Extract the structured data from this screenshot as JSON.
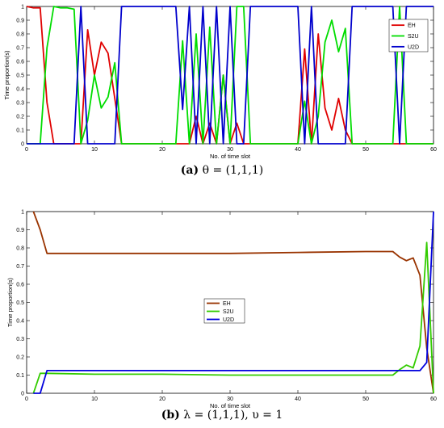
{
  "captions": [
    {
      "letter": "(a)",
      "text": "θ = (1,1,1)"
    },
    {
      "letter": "(b)",
      "text": "λ = (1,1,1), υ = 1"
    }
  ],
  "chart_data": [
    {
      "type": "line",
      "xlabel": "No. of time slot",
      "ylabel": "Time proportion(s)",
      "xlim": [
        0,
        60
      ],
      "ylim": [
        0,
        1
      ],
      "xticks": [
        0,
        10,
        20,
        30,
        40,
        50,
        60
      ],
      "yticks": [
        0,
        0.1,
        0.2,
        0.3,
        0.4,
        0.5,
        0.6,
        0.7,
        0.8,
        0.9,
        1
      ],
      "legend_position": "top-right",
      "grid": false,
      "series": [
        {
          "name": "EH",
          "color": "#e00000",
          "x": [
            0,
            1,
            2,
            3,
            4,
            5,
            6,
            7,
            8,
            9,
            10,
            11,
            12,
            13,
            14,
            15,
            20,
            22,
            23,
            24,
            25,
            26,
            27,
            28,
            29,
            30,
            31,
            32,
            33,
            34,
            35,
            40,
            41,
            42,
            43,
            44,
            45,
            46,
            47,
            48,
            49,
            50,
            54,
            55,
            56,
            57,
            58,
            59,
            60
          ],
          "y": [
            1,
            0.99,
            0.99,
            0.3,
            0,
            0,
            0,
            0,
            0,
            0.83,
            0.5,
            0.74,
            0.66,
            0.33,
            0,
            0,
            0,
            0,
            0,
            0,
            0.2,
            0,
            0.15,
            0,
            0.5,
            0,
            0.15,
            0,
            0,
            0,
            0,
            0,
            0.69,
            0,
            0.8,
            0.26,
            0.1,
            0.33,
            0.1,
            0,
            0,
            0,
            0,
            0,
            0,
            0,
            0,
            0,
            0
          ]
        },
        {
          "name": "S2U",
          "color": "#00dd00",
          "x": [
            0,
            1,
            2,
            3,
            4,
            5,
            6,
            7,
            8,
            9,
            10,
            11,
            12,
            13,
            14,
            15,
            20,
            22,
            23,
            24,
            25,
            26,
            27,
            28,
            29,
            30,
            31,
            32,
            33,
            34,
            35,
            40,
            41,
            42,
            43,
            44,
            45,
            46,
            47,
            48,
            49,
            50,
            54,
            55,
            56,
            57,
            58,
            59,
            60
          ],
          "y": [
            0,
            0,
            0,
            0.7,
            1,
            0.99,
            0.99,
            0.98,
            0,
            0.17,
            0.5,
            0.26,
            0.34,
            0.59,
            0,
            0,
            0,
            0,
            0.75,
            0,
            0.8,
            0,
            0.85,
            0,
            0.5,
            0,
            1,
            1,
            0,
            0,
            0,
            0,
            0.31,
            0,
            0.2,
            0.74,
            0.9,
            0.67,
            0.84,
            0,
            0,
            0,
            0,
            1,
            0,
            0,
            0,
            0,
            0
          ]
        },
        {
          "name": "U2D",
          "color": "#0000cc",
          "x": [
            0,
            1,
            2,
            3,
            4,
            5,
            6,
            7,
            8,
            9,
            10,
            11,
            12,
            13,
            14,
            15,
            20,
            22,
            23,
            24,
            25,
            26,
            27,
            28,
            29,
            30,
            31,
            32,
            33,
            34,
            35,
            40,
            41,
            42,
            43,
            44,
            45,
            46,
            47,
            48,
            49,
            50,
            54,
            55,
            56,
            57,
            58,
            59,
            60
          ],
          "y": [
            0,
            0,
            0,
            0,
            0,
            0,
            0,
            0,
            1,
            0,
            0,
            0,
            0,
            0,
            1,
            1,
            1,
            1,
            0.25,
            1,
            0,
            1,
            0,
            1,
            0,
            1,
            0,
            0,
            1,
            1,
            1,
            1,
            0,
            1,
            0,
            0,
            0,
            0,
            0,
            1,
            1,
            1,
            1,
            0,
            1,
            1,
            1,
            1,
            1
          ]
        }
      ]
    },
    {
      "type": "line",
      "xlabel": "No. of time slot",
      "ylabel": "Time proportion(s)",
      "xlim": [
        0,
        60
      ],
      "ylim": [
        0,
        1
      ],
      "xticks": [
        0,
        10,
        20,
        30,
        40,
        50,
        60
      ],
      "yticks": [
        0,
        0.1,
        0.2,
        0.3,
        0.4,
        0.5,
        0.6,
        0.7,
        0.8,
        0.9,
        1
      ],
      "legend_position": "center",
      "grid": false,
      "series": [
        {
          "name": "EH",
          "color": "#993300",
          "x": [
            1,
            2,
            3,
            10,
            20,
            30,
            40,
            50,
            54,
            55,
            56,
            57,
            58,
            59,
            60
          ],
          "y": [
            1,
            0.9,
            0.77,
            0.77,
            0.77,
            0.77,
            0.775,
            0.78,
            0.78,
            0.75,
            0.73,
            0.745,
            0.65,
            0.25,
            0
          ]
        },
        {
          "name": "S2U",
          "color": "#33cc00",
          "x": [
            1,
            2,
            3,
            10,
            20,
            30,
            40,
            50,
            54,
            55,
            56,
            57,
            58,
            59,
            60
          ],
          "y": [
            0,
            0.11,
            0.11,
            0.105,
            0.105,
            0.1,
            0.1,
            0.1,
            0.1,
            0.13,
            0.155,
            0.14,
            0.26,
            0.83,
            0
          ]
        },
        {
          "name": "U2D",
          "color": "#0000dd",
          "x": [
            1,
            2,
            3,
            10,
            20,
            30,
            40,
            50,
            54,
            55,
            56,
            57,
            58,
            59,
            60
          ],
          "y": [
            0,
            0,
            0.125,
            0.125,
            0.125,
            0.125,
            0.125,
            0.125,
            0.125,
            0.125,
            0.125,
            0.125,
            0.125,
            0.17,
            1
          ]
        }
      ]
    }
  ]
}
